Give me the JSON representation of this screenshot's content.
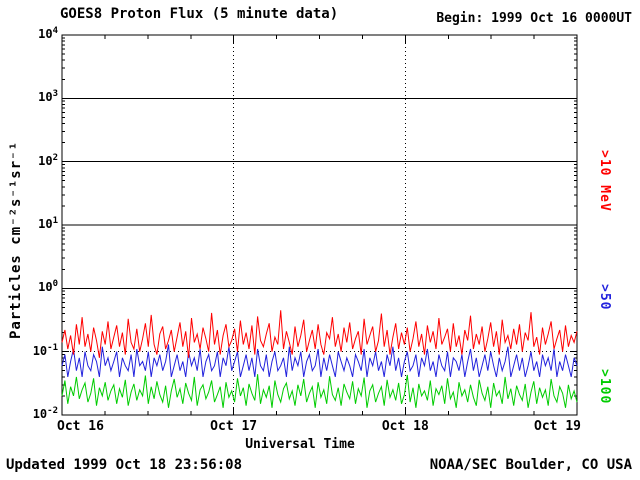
{
  "header": {
    "title": "GOES8 Proton Flux (5 minute data)",
    "begin": "Begin: 1999 Oct 16 0000UT"
  },
  "footer": {
    "updated": "Updated 1999 Oct 18 23:56:08",
    "source": "NOAA/SEC Boulder, CO USA"
  },
  "chart_data": {
    "type": "line",
    "title": "GOES8 Proton Flux (5 minute data)",
    "xlabel": "Universal Time",
    "ylabel": "Particles cm⁻²s⁻¹sr⁻¹",
    "y_scale": "log10",
    "ylim": [
      0.01,
      10000
    ],
    "ylim_log10": [
      -2,
      4
    ],
    "y_ticks_exponents": [
      4,
      3,
      2,
      1,
      0,
      -1,
      -2
    ],
    "x_ticks": [
      "Oct 16",
      "Oct 17",
      "Oct 18",
      "Oct 19"
    ],
    "x_days": 3,
    "grid": "horizontal solid lines at decades, dotted line at 1e-1, dotted vertical lines at day boundaries",
    "legend_position": "right-vertical",
    "series": [
      {
        "name": ">10 MeV",
        "color": "#ff0000",
        "values": [
          0.14,
          0.22,
          0.11,
          0.18,
          0.09,
          0.27,
          0.13,
          0.35,
          0.12,
          0.19,
          0.1,
          0.24,
          0.15,
          0.08,
          0.21,
          0.13,
          0.3,
          0.11,
          0.17,
          0.26,
          0.12,
          0.2,
          0.09,
          0.33,
          0.14,
          0.11,
          0.23,
          0.1,
          0.16,
          0.28,
          0.12,
          0.38,
          0.13,
          0.09,
          0.19,
          0.25,
          0.11,
          0.15,
          0.22,
          0.1,
          0.17,
          0.29,
          0.12,
          0.21,
          0.08,
          0.34,
          0.14,
          0.19,
          0.11,
          0.24,
          0.16,
          0.1,
          0.41,
          0.13,
          0.22,
          0.09,
          0.18,
          0.27,
          0.12,
          0.15,
          0.23,
          0.1,
          0.31,
          0.13,
          0.2,
          0.11,
          0.26,
          0.09,
          0.36,
          0.15,
          0.12,
          0.19,
          0.28,
          0.1,
          0.17,
          0.13,
          0.45,
          0.11,
          0.21,
          0.14,
          0.09,
          0.25,
          0.12,
          0.18,
          0.32,
          0.1,
          0.15,
          0.22,
          0.11,
          0.27,
          0.13,
          0.09,
          0.2,
          0.16,
          0.35,
          0.12,
          0.19,
          0.1,
          0.24,
          0.14,
          0.29,
          0.11,
          0.16,
          0.21,
          0.09,
          0.33,
          0.13,
          0.18,
          0.25,
          0.1,
          0.15,
          0.4,
          0.12,
          0.22,
          0.09,
          0.17,
          0.28,
          0.11,
          0.2,
          0.13,
          0.24,
          0.1,
          0.16,
          0.3,
          0.12,
          0.19,
          0.09,
          0.26,
          0.14,
          0.21,
          0.11,
          0.34,
          0.13,
          0.17,
          0.23,
          0.1,
          0.28,
          0.12,
          0.18,
          0.09,
          0.22,
          0.15,
          0.37,
          0.11,
          0.19,
          0.13,
          0.25,
          0.1,
          0.16,
          0.29,
          0.12,
          0.21,
          0.09,
          0.32,
          0.14,
          0.18,
          0.11,
          0.23,
          0.13,
          0.27,
          0.1,
          0.2,
          0.15,
          0.42,
          0.12,
          0.17,
          0.09,
          0.24,
          0.13,
          0.19,
          0.3,
          0.11,
          0.16,
          0.22,
          0.1,
          0.26,
          0.12,
          0.18,
          0.14,
          0.21
        ]
      },
      {
        "name": ">50",
        "color": "#2222dd",
        "values": [
          0.06,
          0.09,
          0.04,
          0.07,
          0.11,
          0.05,
          0.08,
          0.04,
          0.1,
          0.06,
          0.05,
          0.09,
          0.07,
          0.04,
          0.12,
          0.06,
          0.08,
          0.05,
          0.07,
          0.1,
          0.04,
          0.08,
          0.06,
          0.05,
          0.09,
          0.04,
          0.11,
          0.06,
          0.07,
          0.05,
          0.1,
          0.04,
          0.08,
          0.06,
          0.09,
          0.05,
          0.07,
          0.13,
          0.04,
          0.06,
          0.09,
          0.05,
          0.07,
          0.04,
          0.1,
          0.06,
          0.08,
          0.05,
          0.11,
          0.04,
          0.07,
          0.09,
          0.05,
          0.06,
          0.1,
          0.04,
          0.08,
          0.06,
          0.12,
          0.05,
          0.07,
          0.1,
          0.04,
          0.06,
          0.09,
          0.05,
          0.08,
          0.04,
          0.11,
          0.06,
          0.05,
          0.09,
          0.04,
          0.07,
          0.1,
          0.05,
          0.06,
          0.08,
          0.04,
          0.12,
          0.05,
          0.08,
          0.06,
          0.1,
          0.04,
          0.07,
          0.09,
          0.05,
          0.06,
          0.11,
          0.04,
          0.08,
          0.05,
          0.09,
          0.06,
          0.04,
          0.1,
          0.07,
          0.05,
          0.08,
          0.06,
          0.04,
          0.09,
          0.07,
          0.05,
          0.11,
          0.04,
          0.08,
          0.06,
          0.1,
          0.05,
          0.07,
          0.04,
          0.09,
          0.06,
          0.12,
          0.05,
          0.08,
          0.04,
          0.07,
          0.1,
          0.05,
          0.06,
          0.09,
          0.04,
          0.08,
          0.06,
          0.11,
          0.05,
          0.07,
          0.04,
          0.09,
          0.06,
          0.05,
          0.1,
          0.04,
          0.08,
          0.07,
          0.05,
          0.09,
          0.04,
          0.07,
          0.11,
          0.05,
          0.08,
          0.04,
          0.06,
          0.09,
          0.05,
          0.1,
          0.06,
          0.04,
          0.08,
          0.05,
          0.07,
          0.12,
          0.04,
          0.06,
          0.09,
          0.05,
          0.08,
          0.04,
          0.06,
          0.1,
          0.05,
          0.07,
          0.04,
          0.09,
          0.06,
          0.08,
          0.05,
          0.11,
          0.04,
          0.07,
          0.05,
          0.09,
          0.06,
          0.04,
          0.08,
          0.06
        ]
      },
      {
        "name": ">100",
        "color": "#00cc00",
        "values": [
          0.02,
          0.035,
          0.015,
          0.028,
          0.02,
          0.04,
          0.018,
          0.025,
          0.032,
          0.016,
          0.022,
          0.038,
          0.014,
          0.027,
          0.02,
          0.033,
          0.017,
          0.024,
          0.03,
          0.015,
          0.026,
          0.019,
          0.036,
          0.014,
          0.023,
          0.031,
          0.017,
          0.025,
          0.02,
          0.042,
          0.015,
          0.028,
          0.018,
          0.034,
          0.021,
          0.016,
          0.029,
          0.013,
          0.024,
          0.037,
          0.019,
          0.026,
          0.015,
          0.032,
          0.022,
          0.017,
          0.04,
          0.014,
          0.025,
          0.03,
          0.018,
          0.023,
          0.035,
          0.016,
          0.021,
          0.028,
          0.013,
          0.033,
          0.019,
          0.024,
          0.016,
          0.038,
          0.02,
          0.027,
          0.014,
          0.031,
          0.022,
          0.017,
          0.044,
          0.015,
          0.025,
          0.019,
          0.029,
          0.013,
          0.035,
          0.021,
          0.016,
          0.026,
          0.032,
          0.018,
          0.024,
          0.014,
          0.03,
          0.02,
          0.037,
          0.016,
          0.022,
          0.028,
          0.013,
          0.033,
          0.019,
          0.025,
          0.015,
          0.041,
          0.021,
          0.017,
          0.027,
          0.014,
          0.031,
          0.023,
          0.018,
          0.034,
          0.015,
          0.026,
          0.02,
          0.039,
          0.013,
          0.024,
          0.03,
          0.016,
          0.022,
          0.028,
          0.014,
          0.036,
          0.019,
          0.025,
          0.017,
          0.032,
          0.015,
          0.021,
          0.043,
          0.016,
          0.027,
          0.013,
          0.031,
          0.02,
          0.024,
          0.017,
          0.035,
          0.014,
          0.026,
          0.021,
          0.029,
          0.015,
          0.038,
          0.018,
          0.023,
          0.013,
          0.033,
          0.02,
          0.025,
          0.016,
          0.03,
          0.019,
          0.014,
          0.036,
          0.022,
          0.017,
          0.028,
          0.013,
          0.032,
          0.02,
          0.024,
          0.015,
          0.04,
          0.018,
          0.026,
          0.014,
          0.029,
          0.021,
          0.017,
          0.031,
          0.013,
          0.023,
          0.034,
          0.015,
          0.027,
          0.019,
          0.025,
          0.014,
          0.037,
          0.02,
          0.016,
          0.028,
          0.022,
          0.013,
          0.03,
          0.018,
          0.024,
          0.016
        ]
      }
    ]
  }
}
